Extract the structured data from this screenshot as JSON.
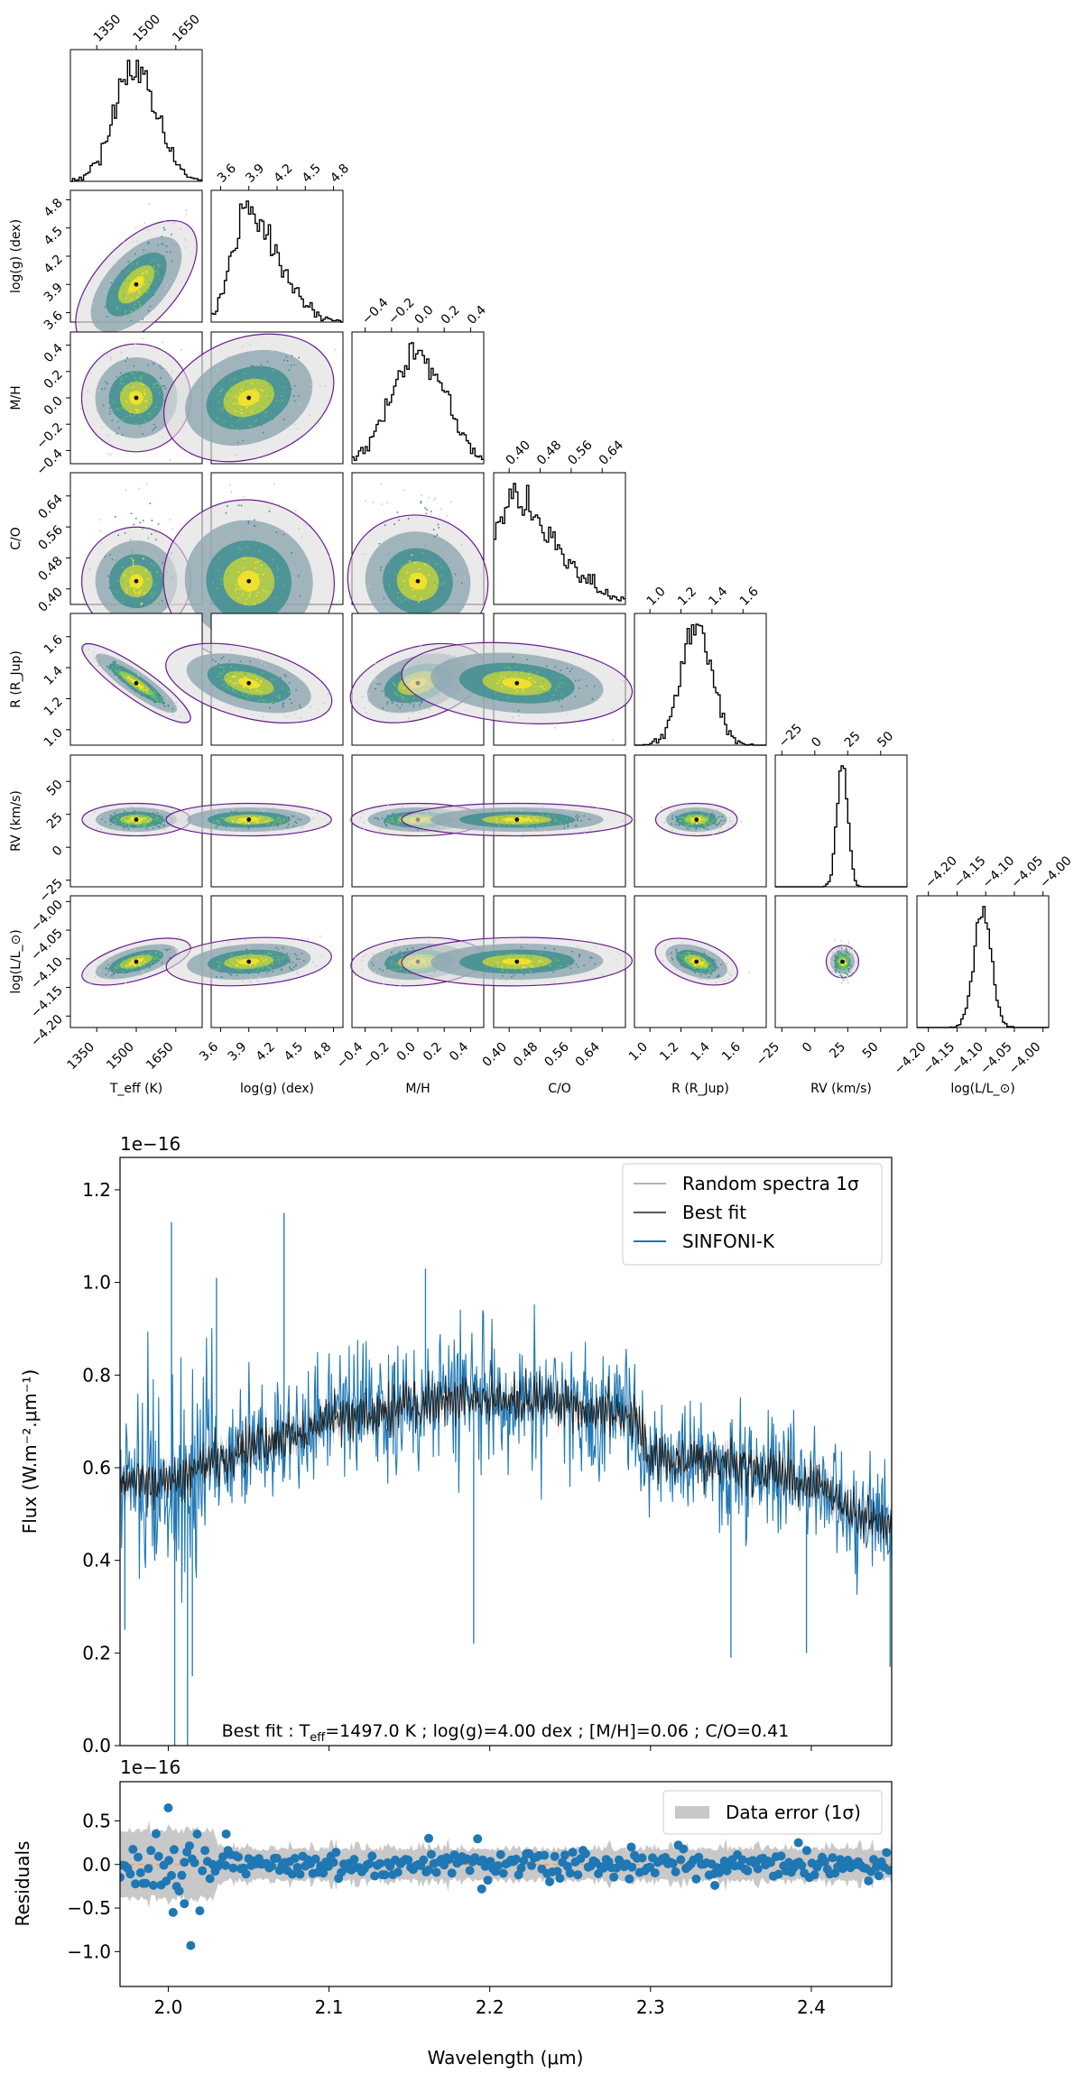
{
  "colors": {
    "observed": "#1f77b4",
    "best_fit": "#222222",
    "random_spectra": "#b3b3b3",
    "data_error": "#c8c8c8",
    "zero_line": "#f5a05a",
    "density": [
      "#f7f7f7",
      "#c9c9c9",
      "#8fa6b0",
      "#3b8c8c",
      "#5ec962",
      "#c7d63a",
      "#fde725"
    ],
    "contour": "#6a1b8f"
  },
  "chart_data": [
    {
      "type": "corner",
      "parameters": [
        {
          "key": "teff",
          "label": "T_eff (K)",
          "range": [
            1250,
            1750
          ],
          "ticks": [
            1350,
            1500,
            1650
          ],
          "tick_labels": [
            "1350",
            "1500",
            "1650"
          ],
          "median": 1500,
          "sigma": 80,
          "shape": "gaussian"
        },
        {
          "key": "logg",
          "label": "log(g) (dex)",
          "range": [
            3.5,
            4.9
          ],
          "ticks": [
            3.6,
            3.9,
            4.2,
            4.5,
            4.8
          ],
          "tick_labels": [
            "3.6",
            "3.9",
            "4.2",
            "4.5",
            "4.8"
          ],
          "median": 3.9,
          "sigma": 0.35,
          "shape": "skewed"
        },
        {
          "key": "mh",
          "label": "M/H",
          "range": [
            -0.5,
            0.5
          ],
          "ticks": [
            -0.4,
            -0.2,
            0.0,
            0.2,
            0.4
          ],
          "tick_labels": [
            "−0.4",
            "−0.2",
            "0.0",
            "0.2",
            "0.4"
          ],
          "median": 0.0,
          "sigma": 0.2,
          "shape": "gaussian"
        },
        {
          "key": "co",
          "label": "C/O",
          "range": [
            0.36,
            0.7
          ],
          "ticks": [
            0.4,
            0.48,
            0.56,
            0.64
          ],
          "tick_labels": [
            "0.40",
            "0.48",
            "0.56",
            "0.64"
          ],
          "median": 0.42,
          "sigma": 0.12,
          "shape": "skewed"
        },
        {
          "key": "r",
          "label": "R (R_Jup)",
          "range": [
            0.9,
            1.75
          ],
          "ticks": [
            1.0,
            1.2,
            1.4,
            1.6
          ],
          "tick_labels": [
            "1.0",
            "1.2",
            "1.4",
            "1.6"
          ],
          "median": 1.3,
          "sigma": 0.1,
          "shape": "gaussian"
        },
        {
          "key": "rv",
          "label": "RV (km/s)",
          "range": [
            -30,
            70
          ],
          "ticks": [
            -25,
            0,
            25,
            50
          ],
          "tick_labels": [
            "−25",
            "0",
            "25",
            "50"
          ],
          "median": 21,
          "sigma": 4,
          "shape": "gaussian"
        },
        {
          "key": "logl",
          "label": "log(L/L_⊙)",
          "range": [
            -4.22,
            -3.99
          ],
          "ticks": [
            -4.2,
            -4.15,
            -4.1,
            -4.05,
            -4.0
          ],
          "tick_labels": [
            "−4.20",
            "−4.15",
            "−4.10",
            "−4.05",
            "−4.00"
          ],
          "median": -4.105,
          "sigma": 0.015,
          "shape": "gaussian"
        }
      ]
    },
    {
      "type": "line",
      "title": "",
      "annotation": {
        "prefix": "Best fit : T",
        "sub": "eff",
        "rest": "=1497.0 K ; log(g)=4.00 dex ; [M/H]=0.06 ; C/O=0.41"
      },
      "best_fit_params": {
        "teff": 1497.0,
        "logg": 4.0,
        "mh": 0.06,
        "co": 0.41
      },
      "ylabel": "Flux (W.m⁻².μm⁻¹)",
      "y_multiplier": "1e−16",
      "xlim": [
        1.97,
        2.45
      ],
      "ylim": [
        0.0,
        1.27
      ],
      "yticks": [
        0.0,
        0.2,
        0.4,
        0.6,
        0.8,
        1.0,
        1.2
      ],
      "ytick_labels": [
        "0.0",
        "0.2",
        "0.4",
        "0.6",
        "0.8",
        "1.0",
        "1.2"
      ],
      "grid": false,
      "legend_position": "top-right",
      "series": [
        {
          "name": "Random spectra 1σ",
          "style": "shaded"
        },
        {
          "name": "Best fit",
          "style": "line"
        },
        {
          "name": "SINFONI-K",
          "style": "line"
        }
      ],
      "continuum": {
        "x": [
          1.97,
          2.0,
          2.05,
          2.1,
          2.15,
          2.2,
          2.25,
          2.29,
          2.3,
          2.35,
          2.4,
          2.45
        ],
        "y": [
          0.57,
          0.57,
          0.64,
          0.7,
          0.73,
          0.75,
          0.74,
          0.71,
          0.62,
          0.61,
          0.56,
          0.46
        ]
      },
      "noted_extremes": {
        "x": [
          1.973,
          2.002,
          2.004,
          2.012,
          2.015,
          2.03,
          2.072,
          2.16,
          2.19,
          2.35,
          2.397,
          2.449
        ],
        "y": [
          0.25,
          1.13,
          0.0,
          0.0,
          0.15,
          1.01,
          1.15,
          1.03,
          0.22,
          0.19,
          0.2,
          0.17
        ]
      }
    },
    {
      "type": "scatter",
      "ylabel": "Residuals",
      "xlabel": "Wavelength (μm)",
      "y_multiplier": "1e−16",
      "xlim": [
        1.97,
        2.45
      ],
      "ylim": [
        -1.4,
        0.95
      ],
      "xticks": [
        2.0,
        2.1,
        2.2,
        2.3,
        2.4
      ],
      "xtick_labels": [
        "2.0",
        "2.1",
        "2.2",
        "2.3",
        "2.4"
      ],
      "yticks": [
        -1.0,
        -0.5,
        0.0,
        0.5
      ],
      "ytick_labels": [
        "−1.0",
        "−0.5",
        "0.0",
        "0.5"
      ],
      "legend_position": "top-right",
      "series": [
        {
          "name": "Data error (1σ)",
          "style": "shaded"
        }
      ],
      "noted_points": {
        "x": [
          2.0,
          2.003,
          2.01,
          2.014,
          2.036,
          2.162,
          2.195,
          2.288,
          2.34,
          2.392
        ],
        "y": [
          0.65,
          -0.55,
          -0.45,
          -0.93,
          0.35,
          0.3,
          -0.28,
          0.2,
          -0.24,
          0.25
        ]
      }
    }
  ]
}
